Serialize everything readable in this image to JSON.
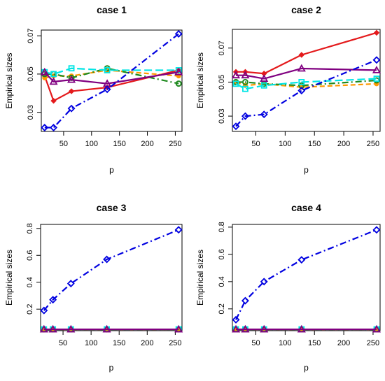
{
  "chart_data": [
    {
      "type": "line",
      "title": "case 1",
      "xlabel": "p",
      "ylabel": "Empirical sizes",
      "x": [
        16,
        32,
        64,
        128,
        256
      ],
      "xlim": [
        10,
        262
      ],
      "ylim": [
        0.02,
        0.073
      ],
      "xticks": [
        50,
        100,
        150,
        200,
        250
      ],
      "xtick_labels": [
        "50",
        "100",
        "150",
        "200",
        "250"
      ],
      "yticks": [
        0.03,
        0.05,
        0.07
      ],
      "ytick_labels": [
        "0.03",
        "0.05",
        "0.07"
      ],
      "grid": false,
      "legend": "none",
      "series": [
        {
          "color": "#e41a1c",
          "marker": "diamond-filled",
          "dash": "solid",
          "values": [
            0.049,
            0.036,
            0.041,
            0.043,
            0.052
          ]
        },
        {
          "color": "#ff9900",
          "marker": "circle-filled",
          "dash": "dashed",
          "values": [
            0.048,
            0.049,
            0.049,
            0.052,
            0.049
          ]
        },
        {
          "color": "#1f8a1f",
          "marker": "circle-open",
          "dash": "dotdash",
          "values": [
            0.05,
            0.05,
            0.048,
            0.053,
            0.045
          ]
        },
        {
          "color": "#00e5e5",
          "marker": "square-open",
          "dash": "longdash",
          "values": [
            0.051,
            0.05,
            0.053,
            0.052,
            0.052
          ]
        },
        {
          "color": "#800080",
          "marker": "triangle-open",
          "dash": "solid",
          "values": [
            0.051,
            0.046,
            0.047,
            0.045,
            0.051
          ]
        },
        {
          "color": "#0000e0",
          "marker": "diamond-open",
          "dash": "dotdash",
          "values": [
            0.022,
            0.022,
            0.032,
            0.042,
            0.071
          ]
        }
      ]
    },
    {
      "type": "line",
      "title": "case 2",
      "xlabel": "p",
      "ylabel": "Empirical sizes",
      "x": [
        16,
        32,
        64,
        128,
        256
      ],
      "xlim": [
        10,
        262
      ],
      "ylim": [
        0.021,
        0.081
      ],
      "xticks": [
        50,
        100,
        150,
        200,
        250
      ],
      "xtick_labels": [
        "50",
        "100",
        "150",
        "200",
        "250"
      ],
      "yticks": [
        0.03,
        0.05,
        0.07
      ],
      "ytick_labels": [
        "0.03",
        "0.05",
        "0.07"
      ],
      "grid": false,
      "legend": "none",
      "series": [
        {
          "color": "#e41a1c",
          "marker": "diamond-filled",
          "dash": "solid",
          "values": [
            0.056,
            0.056,
            0.055,
            0.066,
            0.079
          ]
        },
        {
          "color": "#ff9900",
          "marker": "circle-filled",
          "dash": "dashed",
          "values": [
            0.05,
            0.048,
            0.049,
            0.047,
            0.049
          ]
        },
        {
          "color": "#1f8a1f",
          "marker": "circle-open",
          "dash": "dotdash",
          "values": [
            0.05,
            0.05,
            0.049,
            0.048,
            0.051
          ]
        },
        {
          "color": "#00e5e5",
          "marker": "square-open",
          "dash": "longdash",
          "values": [
            0.049,
            0.046,
            0.048,
            0.05,
            0.052
          ]
        },
        {
          "color": "#800080",
          "marker": "triangle-open",
          "dash": "solid",
          "values": [
            0.054,
            0.054,
            0.052,
            0.058,
            0.057
          ]
        },
        {
          "color": "#0000e0",
          "marker": "diamond-open",
          "dash": "dotdash",
          "values": [
            0.024,
            0.03,
            0.031,
            0.045,
            0.063
          ]
        }
      ]
    },
    {
      "type": "line",
      "title": "case 3",
      "xlabel": "p",
      "ylabel": "Empirical sizes",
      "x": [
        16,
        32,
        64,
        128,
        256
      ],
      "xlim": [
        10,
        262
      ],
      "ylim": [
        0.04,
        0.83
      ],
      "xticks": [
        50,
        100,
        150,
        200,
        250
      ],
      "xtick_labels": [
        "50",
        "100",
        "150",
        "200",
        "250"
      ],
      "yticks": [
        0.2,
        0.4,
        0.6,
        0.8
      ],
      "ytick_labels": [
        "0.2",
        "0.4",
        "0.6",
        "0.8"
      ],
      "grid": false,
      "legend": "none",
      "series": [
        {
          "color": "#e41a1c",
          "marker": "diamond-filled",
          "dash": "solid",
          "values": [
            0.05,
            0.05,
            0.05,
            0.05,
            0.05
          ]
        },
        {
          "color": "#ff9900",
          "marker": "circle-filled",
          "dash": "dashed",
          "values": [
            0.05,
            0.05,
            0.05,
            0.05,
            0.05
          ]
        },
        {
          "color": "#1f8a1f",
          "marker": "circle-open",
          "dash": "dotdash",
          "values": [
            0.05,
            0.05,
            0.05,
            0.05,
            0.05
          ]
        },
        {
          "color": "#00e5e5",
          "marker": "square-open",
          "dash": "longdash",
          "values": [
            0.05,
            0.05,
            0.05,
            0.05,
            0.05
          ]
        },
        {
          "color": "#800080",
          "marker": "triangle-open",
          "dash": "solid",
          "values": [
            0.05,
            0.05,
            0.05,
            0.05,
            0.05
          ]
        },
        {
          "color": "#0000e0",
          "marker": "diamond-open",
          "dash": "dotdash",
          "values": [
            0.19,
            0.27,
            0.39,
            0.57,
            0.79
          ]
        }
      ]
    },
    {
      "type": "line",
      "title": "case 4",
      "xlabel": "p",
      "ylabel": "Empirical sizes",
      "x": [
        16,
        32,
        64,
        128,
        256
      ],
      "xlim": [
        10,
        262
      ],
      "ylim": [
        0.04,
        0.82
      ],
      "xticks": [
        50,
        100,
        150,
        200,
        250
      ],
      "xtick_labels": [
        "50",
        "100",
        "150",
        "200",
        "250"
      ],
      "yticks": [
        0.2,
        0.4,
        0.6,
        0.8
      ],
      "ytick_labels": [
        "0.2",
        "0.4",
        "0.6",
        "0.8"
      ],
      "grid": false,
      "legend": "none",
      "series": [
        {
          "color": "#e41a1c",
          "marker": "diamond-filled",
          "dash": "solid",
          "values": [
            0.05,
            0.05,
            0.05,
            0.05,
            0.05
          ]
        },
        {
          "color": "#ff9900",
          "marker": "circle-filled",
          "dash": "dashed",
          "values": [
            0.05,
            0.05,
            0.05,
            0.05,
            0.05
          ]
        },
        {
          "color": "#1f8a1f",
          "marker": "circle-open",
          "dash": "dotdash",
          "values": [
            0.05,
            0.05,
            0.05,
            0.05,
            0.05
          ]
        },
        {
          "color": "#00e5e5",
          "marker": "square-open",
          "dash": "longdash",
          "values": [
            0.05,
            0.05,
            0.05,
            0.05,
            0.05
          ]
        },
        {
          "color": "#800080",
          "marker": "triangle-open",
          "dash": "solid",
          "values": [
            0.05,
            0.05,
            0.05,
            0.05,
            0.05
          ]
        },
        {
          "color": "#0000e0",
          "marker": "diamond-open",
          "dash": "dotdash",
          "values": [
            0.12,
            0.26,
            0.4,
            0.56,
            0.78
          ]
        }
      ]
    }
  ]
}
